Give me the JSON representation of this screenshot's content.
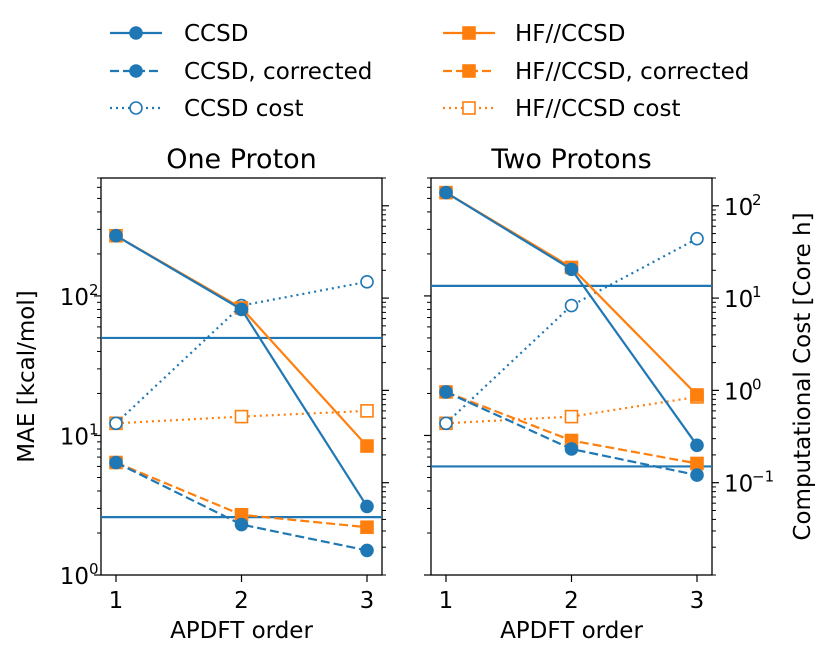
{
  "colors": {
    "ccsd": "#1f77b4",
    "hf": "#ff7f0e"
  },
  "legend": {
    "placement": "top",
    "entries": [
      {
        "label": "CCSD",
        "color": "#1f77b4",
        "linestyle": "solid",
        "marker": "circle",
        "filled": true
      },
      {
        "label": "CCSD, corrected",
        "color": "#1f77b4",
        "linestyle": "dashed",
        "marker": "circle",
        "filled": true
      },
      {
        "label": "CCSD cost",
        "color": "#1f77b4",
        "linestyle": "dotted",
        "marker": "circle",
        "filled": false
      },
      {
        "label": "HF//CCSD",
        "color": "#ff7f0e",
        "linestyle": "solid",
        "marker": "square",
        "filled": true
      },
      {
        "label": "HF//CCSD, corrected",
        "color": "#ff7f0e",
        "linestyle": "dashed",
        "marker": "square",
        "filled": true
      },
      {
        "label": "HF//CCSD cost",
        "color": "#ff7f0e",
        "linestyle": "dotted",
        "marker": "square",
        "filled": false
      }
    ]
  },
  "chart_data": [
    {
      "type": "line",
      "title": "One Proton",
      "xlabel": "APDFT order",
      "ylabel": "MAE [kcal/mol]",
      "yscale": "log",
      "x": [
        1,
        2,
        3
      ],
      "xticks": [
        "1",
        "2",
        "3"
      ],
      "ylim": [
        1,
        700
      ],
      "yticks": [
        {
          "value": 1,
          "label": "10",
          "exp": "0"
        },
        {
          "value": 10,
          "label": "10",
          "exp": "1"
        },
        {
          "value": 100,
          "label": "10",
          "exp": "2"
        }
      ],
      "cost_ylim": [
        0.01,
        200
      ],
      "hlines": [
        50,
        2.6
      ],
      "series": [
        {
          "name": "CCSD",
          "axis": "left",
          "values": [
            270,
            80,
            3.1
          ]
        },
        {
          "name": "CCSD, corrected",
          "axis": "left",
          "values": [
            6.4,
            2.3,
            1.5
          ]
        },
        {
          "name": "CCSD cost",
          "axis": "right",
          "values": [
            0.44,
            8.3,
            15
          ]
        },
        {
          "name": "HF//CCSD",
          "axis": "left",
          "values": [
            270,
            82,
            8.4
          ]
        },
        {
          "name": "HF//CCSD, corrected",
          "axis": "left",
          "values": [
            6.4,
            2.7,
            2.2
          ]
        },
        {
          "name": "HF//CCSD cost",
          "axis": "right",
          "values": [
            0.44,
            0.52,
            0.6
          ]
        }
      ]
    },
    {
      "type": "line",
      "title": "Two Protons",
      "xlabel": "APDFT order",
      "ylabel": "Computational Cost [Core h]",
      "yscale": "log",
      "x": [
        1,
        2,
        3
      ],
      "xticks": [
        "1",
        "2",
        "3"
      ],
      "ylim": [
        1,
        700
      ],
      "cost_ylim": [
        0.01,
        200
      ],
      "yticks_right": [
        {
          "value": 0.1,
          "label": "10",
          "exp": "−1"
        },
        {
          "value": 1,
          "label": "10",
          "exp": "0"
        },
        {
          "value": 10,
          "label": "10",
          "exp": "1"
        },
        {
          "value": 100,
          "label": "10",
          "exp": "2"
        }
      ],
      "hlines": [
        118,
        6
      ],
      "series": [
        {
          "name": "CCSD",
          "axis": "left",
          "values": [
            550,
            155,
            8.5
          ]
        },
        {
          "name": "CCSD, corrected",
          "axis": "left",
          "values": [
            20.5,
            8,
            5.2
          ]
        },
        {
          "name": "CCSD cost",
          "axis": "right",
          "values": [
            0.44,
            8.3,
            44
          ]
        },
        {
          "name": "HF//CCSD",
          "axis": "left",
          "values": [
            550,
            160,
            19.5
          ]
        },
        {
          "name": "HF//CCSD, corrected",
          "axis": "left",
          "values": [
            20.5,
            9.2,
            6.3
          ]
        },
        {
          "name": "HF//CCSD cost",
          "axis": "right",
          "values": [
            0.44,
            0.52,
            0.85
          ]
        }
      ]
    }
  ]
}
